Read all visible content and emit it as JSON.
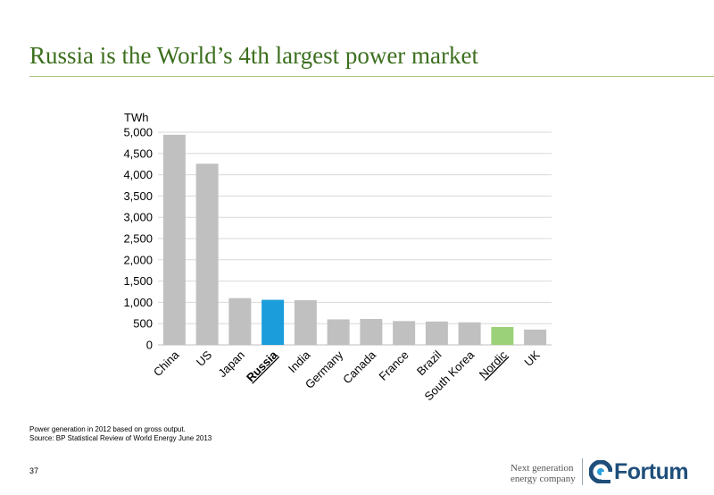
{
  "slide": {
    "title": "Russia is the World’s 4th largest power market",
    "footnote_1": "Power generation in 2012 based on gross output.",
    "footnote_2": "Source: BP Statistical Review of World Energy June 2013",
    "page_number": "37",
    "tagline_line1": "Next generation",
    "tagline_line2": "energy company",
    "logo_text": "Fortum"
  },
  "colors": {
    "title": "#3c6f1e",
    "bar_default": "#c0c0c0",
    "bar_russia": "#1b9ddb",
    "bar_nordic": "#9bd178",
    "gridline": "#d9d9d9",
    "logo_blue": "#1f4e7a"
  },
  "chart_data": {
    "type": "bar",
    "ylabel": "TWh",
    "ylim": [
      0,
      5000
    ],
    "yticks": [
      0,
      500,
      1000,
      1500,
      2000,
      2500,
      3000,
      3500,
      4000,
      4500,
      5000
    ],
    "ytick_labels": [
      "0",
      "500",
      "1,000",
      "1,500",
      "2,000",
      "2,500",
      "3,000",
      "3,500",
      "4,000",
      "4,500",
      "5,000"
    ],
    "grid": true,
    "categories": [
      "China",
      "US",
      "Japan",
      "Russia",
      "India",
      "Germany",
      "Canada",
      "France",
      "Brazil",
      "South Korea",
      "Nordic",
      "UK"
    ],
    "values": [
      4940,
      4260,
      1100,
      1060,
      1050,
      600,
      610,
      560,
      550,
      530,
      420,
      360
    ],
    "highlight": {
      "Russia": {
        "color": "#1b9ddb",
        "label_style": "bold-underline"
      },
      "Nordic": {
        "color": "#9bd178",
        "label_style": "underline"
      }
    }
  }
}
